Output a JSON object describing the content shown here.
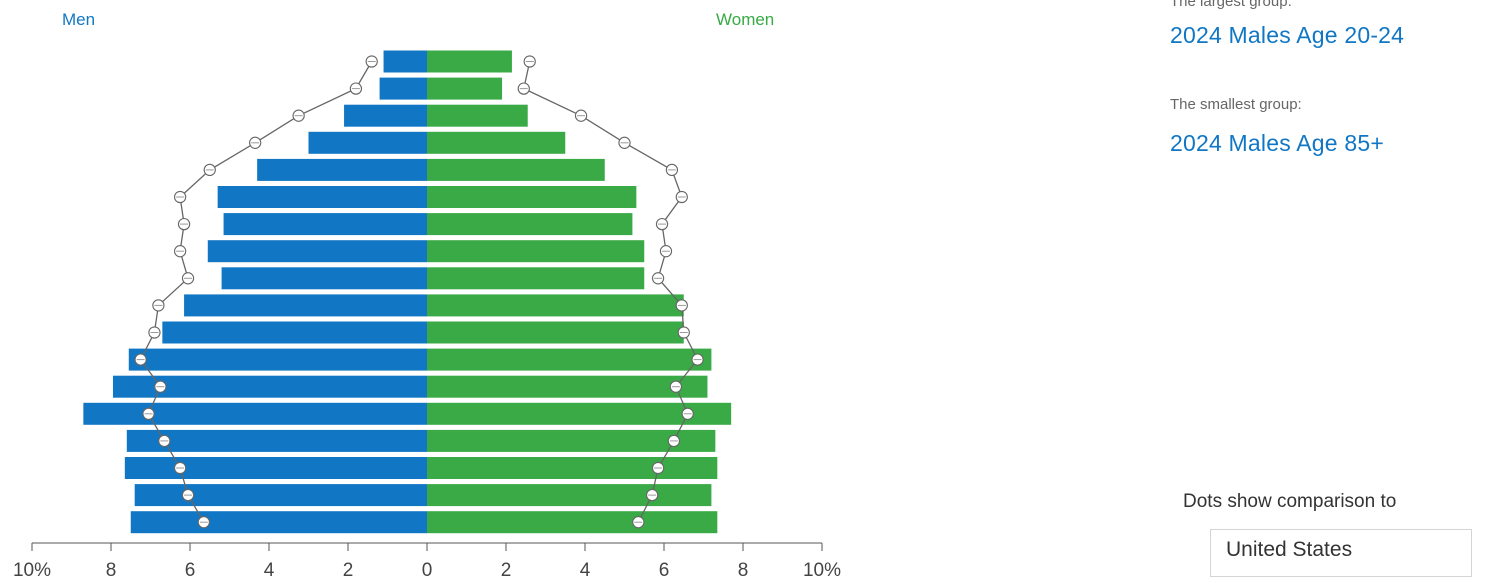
{
  "labels": {
    "men": "Men",
    "women": "Women"
  },
  "summary": {
    "largest_label": "The largest group:",
    "largest_value": "2024 Males Age 20-24",
    "smallest_label": "The smallest group:",
    "smallest_value": "2024 Males Age 85+"
  },
  "comparison": {
    "caption": "Dots show comparison to",
    "selected": "United States"
  },
  "colors": {
    "men": "#1177c4",
    "women": "#39aa46",
    "comparison_line": "#666666"
  },
  "chart_data": {
    "type": "bar",
    "orientation": "horizontal-population-pyramid",
    "units": "percent",
    "xlim": [
      -10,
      10
    ],
    "x_ticks": [
      "10%",
      "8",
      "6",
      "4",
      "2",
      "0",
      "2",
      "4",
      "6",
      "8",
      "10%"
    ],
    "series": [
      {
        "name": "Men",
        "values": [
          1.1,
          1.2,
          2.1,
          3.0,
          4.3,
          5.3,
          5.15,
          5.55,
          5.2,
          6.15,
          6.7,
          7.55,
          7.95,
          8.7,
          7.6,
          7.65,
          7.4,
          7.5
        ]
      },
      {
        "name": "Women",
        "values": [
          2.15,
          1.9,
          2.55,
          3.5,
          4.5,
          5.3,
          5.2,
          5.5,
          5.5,
          6.5,
          6.5,
          7.2,
          7.1,
          7.7,
          7.3,
          7.35,
          7.2,
          7.35
        ]
      }
    ],
    "comparison_dots": {
      "men": [
        1.4,
        1.8,
        3.25,
        4.35,
        5.5,
        6.25,
        6.15,
        6.25,
        6.05,
        6.8,
        6.9,
        7.25,
        6.75,
        7.05,
        6.65,
        6.25,
        6.05,
        5.65
      ],
      "women": [
        2.6,
        2.45,
        3.9,
        5.0,
        6.2,
        6.45,
        5.95,
        6.05,
        5.85,
        6.45,
        6.5,
        6.85,
        6.3,
        6.6,
        6.25,
        5.85,
        5.7,
        5.35
      ]
    }
  }
}
